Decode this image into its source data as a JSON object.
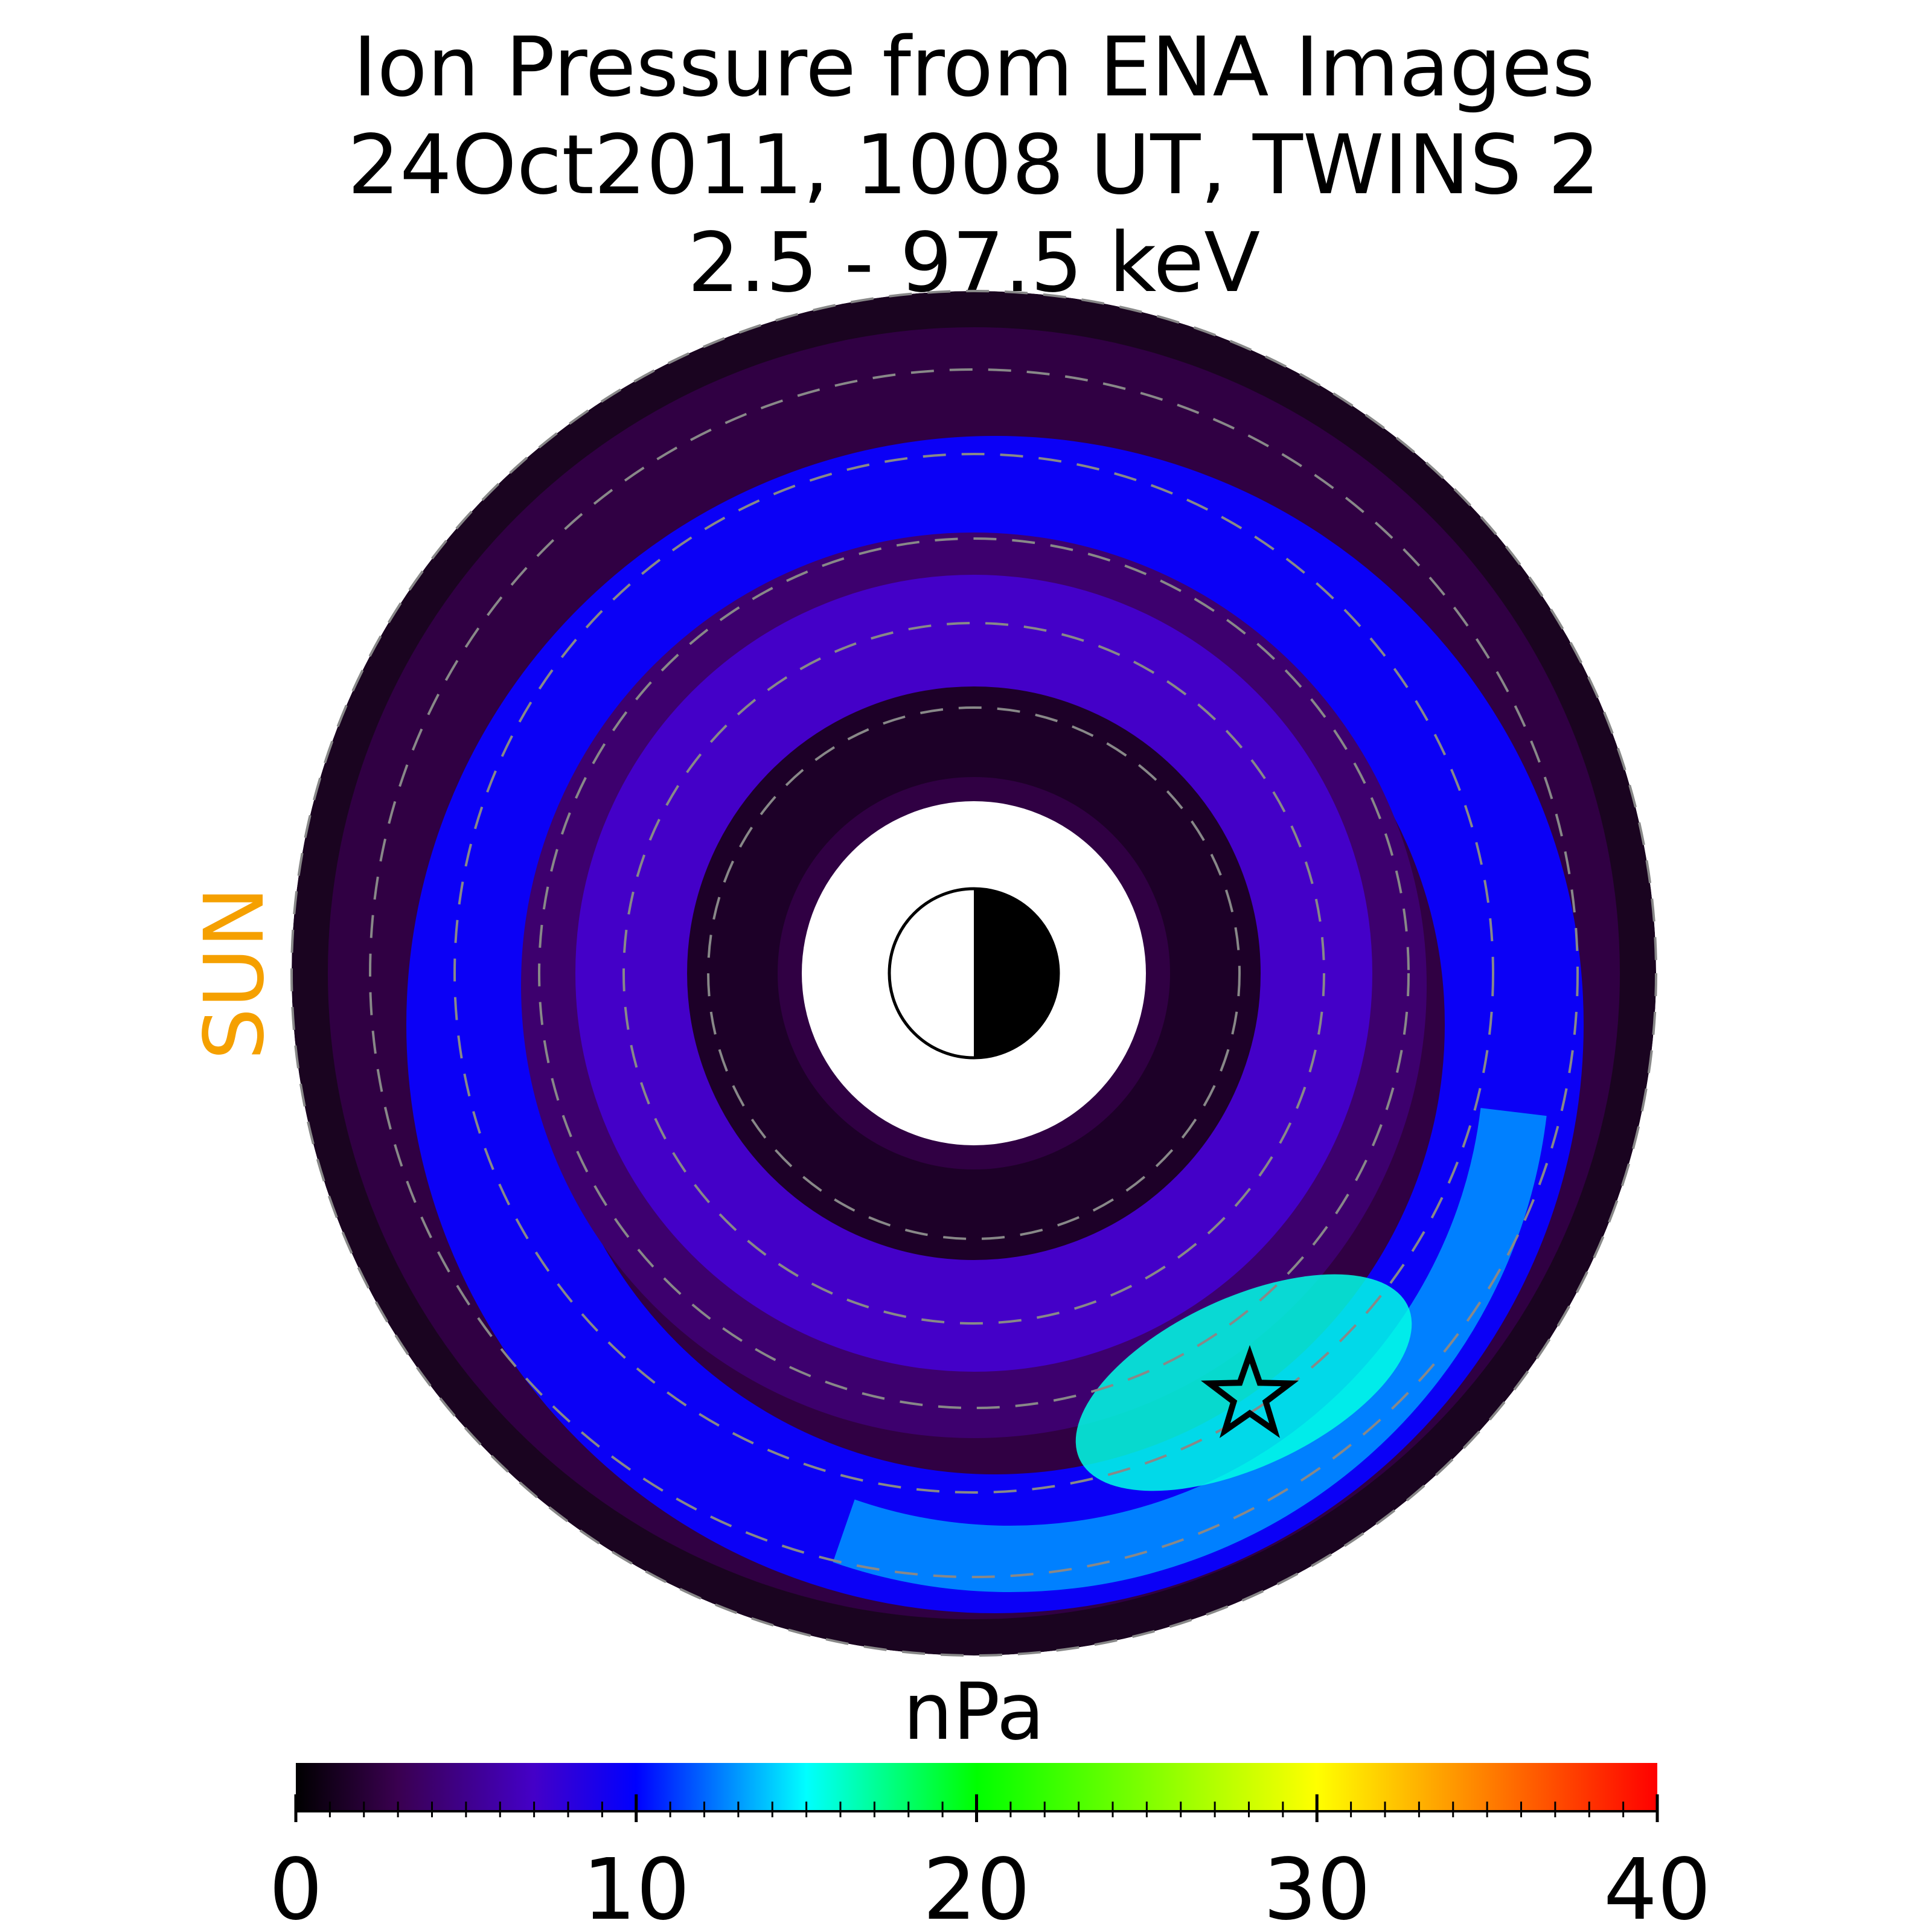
{
  "chart_data": {
    "type": "heatmap",
    "projection": "polar equatorial map",
    "title_lines": [
      "Ion Pressure from  ENA Images",
      "24Oct2011, 1008 UT,  TWINS 2",
      "2.5 - 97.5 keV"
    ],
    "sun_label": "SUN",
    "sun_direction": "left",
    "colorbar": {
      "label": "nPa",
      "range": [
        0,
        40
      ],
      "ticks": [
        0,
        10,
        20,
        30,
        40
      ],
      "tick_labels": [
        "0",
        "10",
        "20",
        "30",
        "40"
      ],
      "minor_tick_step": 1,
      "colormap": [
        {
          "value": 0,
          "color": "#000000"
        },
        {
          "value": 3,
          "color": "#3a0050"
        },
        {
          "value": 7,
          "color": "#4400c8"
        },
        {
          "value": 10,
          "color": "#0000ff"
        },
        {
          "value": 15,
          "color": "#00ffff"
        },
        {
          "value": 20,
          "color": "#00ff00"
        },
        {
          "value": 30,
          "color": "#ffff00"
        },
        {
          "value": 35,
          "color": "#ff7f00"
        },
        {
          "value": 40,
          "color": "#ff0000"
        }
      ]
    },
    "rings": [
      {
        "name": "inner-background",
        "peak": 1.5
      },
      {
        "name": "inner-ring",
        "peak": 7.0
      },
      {
        "name": "outer-ring",
        "peak": 13.5
      }
    ],
    "peak_marker": {
      "symbol": "star",
      "mlt_direction": "lower-right",
      "value": 15.5
    },
    "grid": "dashed circles",
    "earth_symbol": "half-lit circle, day side toward sun",
    "colors": {
      "grid": "#888888",
      "sun_label": "#f5a000",
      "outline": "#000000"
    }
  }
}
